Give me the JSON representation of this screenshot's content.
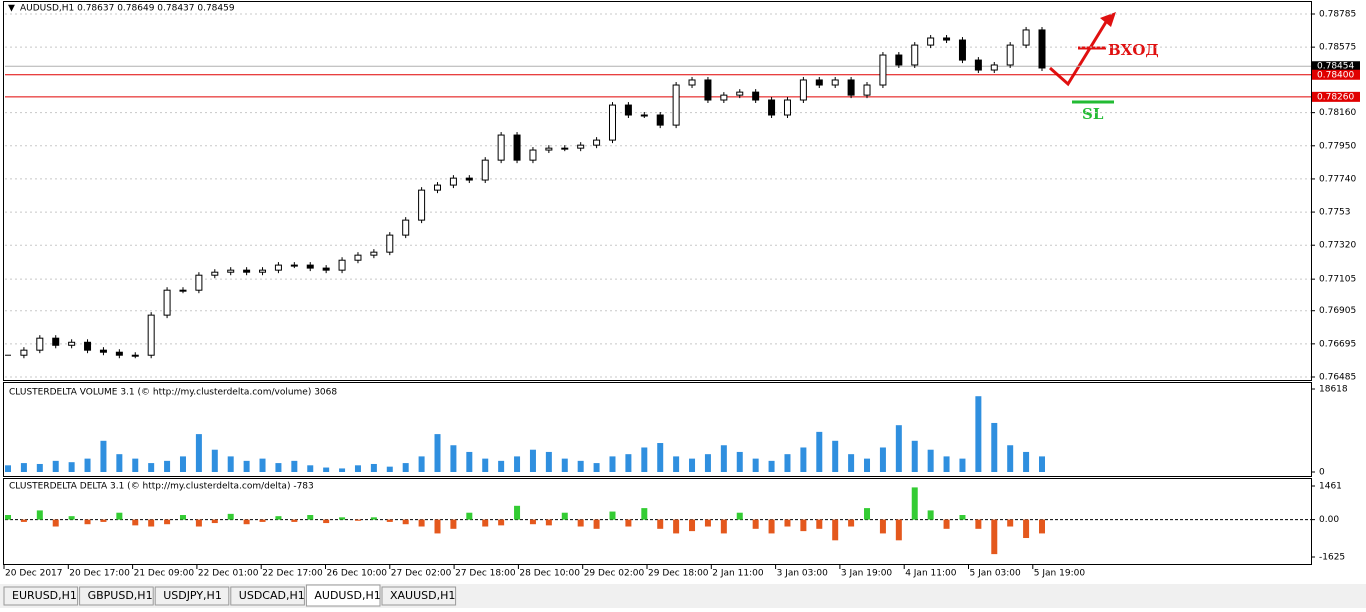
{
  "header": "AUDUSD,H1  0.78637 0.78649 0.78437 0.78459",
  "annotations": {
    "entry": "ВХОД",
    "stop": "SL"
  },
  "tabs": [
    "EURUSD,H1",
    "GBPUSD,H1",
    "USDJPY,H1",
    "USDCAD,H1",
    "AUDUSD,H1",
    "XAUUSD,H1"
  ],
  "active_tab": "AUDUSD,H1",
  "time_labels": [
    "20 Dec 2017",
    "20 Dec 17:00",
    "21 Dec 09:00",
    "22 Dec 01:00",
    "22 Dec 17:00",
    "26 Dec 10:00",
    "27 Dec 02:00",
    "27 Dec 18:00",
    "28 Dec 10:00",
    "29 Dec 02:00",
    "29 Dec 18:00",
    "2 Jan 11:00",
    "3 Jan 03:00",
    "3 Jan 19:00",
    "4 Jan 11:00",
    "5 Jan 03:00",
    "5 Jan 19:00"
  ],
  "chart_data": [
    {
      "type": "candlestick",
      "name": "AUDUSD,H1",
      "values": [
        0.76623,
        0.76655,
        0.76731,
        0.76686,
        0.76705,
        0.76655,
        0.76642,
        0.76623,
        0.76623,
        0.76877,
        0.77035,
        0.77035,
        0.7713,
        0.77149,
        0.77162,
        0.77149,
        0.77162,
        0.77194,
        0.77194,
        0.77175,
        0.77162,
        0.77225,
        0.77257,
        0.77276,
        0.77384,
        0.77479,
        0.77669,
        0.77701,
        0.77745,
        0.77733,
        0.77859,
        0.78018,
        0.77859,
        0.77923,
        0.77935,
        0.77935,
        0.77954,
        0.77986,
        0.78208,
        0.78145,
        0.78145,
        0.78081,
        0.78335,
        0.78367,
        0.7824,
        0.78271,
        0.7829,
        0.7824,
        0.78145,
        0.7824,
        0.78367,
        0.78335,
        0.78367,
        0.78271,
        0.78335,
        0.78525,
        0.78462,
        0.78588,
        0.78633,
        0.7862,
        0.78493,
        0.7843,
        0.78462,
        0.78588,
        0.78684,
        0.78443
      ],
      "ylim": [
        0.76485,
        0.78785
      ],
      "yticks": [
        0.78785,
        0.78575,
        {
          "value": 0.7816,
          "label": "0.78160"
        },
        {
          "value": 0.7795,
          "label": "0.77950"
        },
        {
          "value": 0.7774,
          "label": "0.77740"
        },
        0.7753,
        {
          "value": 0.7732,
          "label": "0.77320"
        },
        0.77105,
        0.76905,
        0.76695,
        0.76485
      ],
      "price_lines": [
        {
          "value": 0.78454,
          "color": "#b0b0b0",
          "tag": "#000000"
        },
        {
          "value": 0.784,
          "label": "0.78400",
          "color": "#e00000",
          "tag": "#e00000"
        },
        {
          "value": 0.7826,
          "label": "0.78260",
          "color": "#e00000",
          "tag": "#e00000"
        }
      ],
      "grid": true
    },
    {
      "type": "bar",
      "title": "CLUSTERDELTA VOLUME 3.1 (© http://my.clusterdelta.com/volume) 3068",
      "color": "#2f8fdf",
      "values": [
        1500,
        2000,
        1800,
        2500,
        2200,
        3000,
        7000,
        4000,
        3000,
        2000,
        2500,
        3500,
        8500,
        5000,
        3500,
        2500,
        3000,
        2000,
        2500,
        1500,
        1000,
        800,
        1500,
        1800,
        1200,
        2000,
        3500,
        8500,
        6000,
        4500,
        3000,
        2500,
        3500,
        5000,
        4500,
        3000,
        2500,
        2000,
        3500,
        4000,
        5500,
        6500,
        3500,
        3000,
        4000,
        6000,
        4500,
        3000,
        2500,
        4000,
        5500,
        9000,
        7000,
        4000,
        3000,
        5500,
        10500,
        7000,
        5000,
        3500,
        3000,
        17000,
        11000,
        6000,
        4500,
        3500
      ],
      "ylim": [
        0,
        18618
      ],
      "yticks": [
        18618,
        0
      ]
    },
    {
      "type": "bar",
      "title": "CLUSTERDELTA DELTA 3.1 (© http://my.clusterdelta.com/delta) -783",
      "colors": {
        "positive": "#33cc33",
        "negative": "#e4581d"
      },
      "values": [
        200,
        -100,
        400,
        -300,
        150,
        -200,
        -100,
        300,
        -250,
        -300,
        -200,
        200,
        -300,
        -150,
        250,
        -200,
        -100,
        150,
        -100,
        200,
        -150,
        100,
        -50,
        100,
        -100,
        -200,
        -300,
        -600,
        -400,
        300,
        -300,
        -250,
        600,
        -200,
        -250,
        300,
        -300,
        -400,
        350,
        -300,
        500,
        -400,
        -600,
        -500,
        -300,
        -600,
        300,
        -400,
        -600,
        -300,
        -500,
        -400,
        -900,
        -300,
        500,
        -600,
        -900,
        1400,
        400,
        -400,
        200,
        -400,
        -1500,
        -300,
        -800,
        -600
      ],
      "ylim": [
        -1625,
        1461
      ],
      "yticks": [
        1461,
        {
          "value": 0,
          "label": "0.00"
        },
        -1625
      ]
    }
  ]
}
